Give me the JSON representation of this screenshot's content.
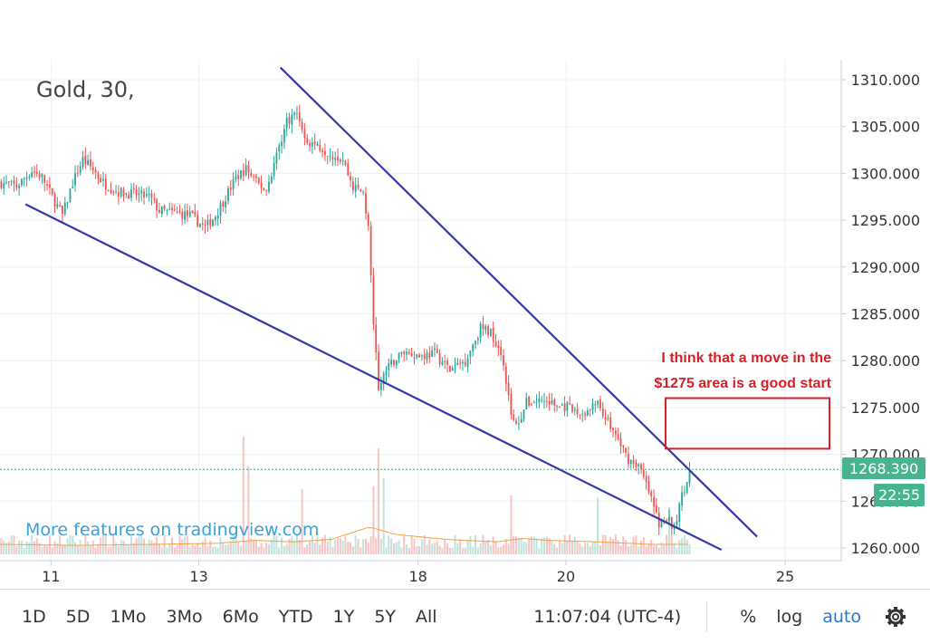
{
  "colors": {
    "up": "#26a69a",
    "down": "#ef5350",
    "trendline": "#3338a6",
    "volume_ma": "#f0a040",
    "price_line": "#47b48d",
    "annotation": "#d42026",
    "watermark": "#3aa0d8",
    "grid": "#eef0f3",
    "axis_text": "#333333"
  },
  "chart_data": {
    "type": "candlestick",
    "symbol_label": "Gold, 30,",
    "watermark": "More features on tradingview.com",
    "y_ticks": [
      "1310.000",
      "1305.000",
      "1300.000",
      "1295.000",
      "1290.000",
      "1285.000",
      "1280.000",
      "1275.000",
      "1270.000",
      "1265.000",
      "1260.000"
    ],
    "y_tick_values": [
      1310,
      1305,
      1300,
      1295,
      1290,
      1285,
      1280,
      1275,
      1270,
      1265,
      1260
    ],
    "ylim": [
      1259,
      1312
    ],
    "x_ticks": [
      {
        "label": "11",
        "bar": 20
      },
      {
        "label": "13",
        "bar": 78
      },
      {
        "label": "18",
        "bar": 164
      },
      {
        "label": "20",
        "bar": 222
      },
      {
        "label": "25",
        "bar": 308
      }
    ],
    "bar_count_visible": 330,
    "current_price": "1268.390",
    "countdown": "22:55",
    "last_price_value": 1268.39,
    "price_path": [
      [
        0,
        1299.0
      ],
      [
        6,
        1298.6
      ],
      [
        12,
        1300.3
      ],
      [
        16,
        1299.6
      ],
      [
        20,
        1297.5
      ],
      [
        24,
        1295.5
      ],
      [
        28,
        1299.0
      ],
      [
        32,
        1301.5
      ],
      [
        36,
        1300.4
      ],
      [
        40,
        1299.0
      ],
      [
        46,
        1298.0
      ],
      [
        52,
        1297.8
      ],
      [
        58,
        1297.5
      ],
      [
        62,
        1296.0
      ],
      [
        68,
        1295.8
      ],
      [
        74,
        1295.5
      ],
      [
        80,
        1294.2
      ],
      [
        84,
        1295.5
      ],
      [
        88,
        1297.5
      ],
      [
        92,
        1299.5
      ],
      [
        96,
        1300.5
      ],
      [
        100,
        1299.0
      ],
      [
        104,
        1298.2
      ],
      [
        108,
        1302.0
      ],
      [
        112,
        1305.6
      ],
      [
        116,
        1306.5
      ],
      [
        120,
        1303.5
      ],
      [
        124,
        1303.0
      ],
      [
        130,
        1302.0
      ],
      [
        134,
        1301.5
      ],
      [
        138,
        1298.5
      ],
      [
        142,
        1298.0
      ],
      [
        144,
        1294.0
      ],
      [
        146,
        1284.0
      ],
      [
        148,
        1276.8
      ],
      [
        150,
        1278.5
      ],
      [
        154,
        1280.0
      ],
      [
        158,
        1281.0
      ],
      [
        164,
        1280.5
      ],
      [
        170,
        1280.8
      ],
      [
        176,
        1279.0
      ],
      [
        182,
        1280.0
      ],
      [
        188,
        1283.5
      ],
      [
        192,
        1283.0
      ],
      [
        196,
        1281.0
      ],
      [
        198,
        1278.0
      ],
      [
        200,
        1274.0
      ],
      [
        202,
        1273.0
      ],
      [
        206,
        1275.5
      ],
      [
        212,
        1275.8
      ],
      [
        218,
        1275.2
      ],
      [
        222,
        1275.0
      ],
      [
        226,
        1274.3
      ],
      [
        230,
        1274.5
      ],
      [
        234,
        1275.5
      ],
      [
        238,
        1273.5
      ],
      [
        242,
        1271.5
      ],
      [
        246,
        1269.5
      ],
      [
        250,
        1268.8
      ],
      [
        254,
        1266.0
      ],
      [
        258,
        1262.6
      ],
      [
        262,
        1263.0
      ],
      [
        264,
        1261.8
      ],
      [
        266,
        1264.6
      ],
      [
        268,
        1266.5
      ],
      [
        270,
        1268.4
      ]
    ],
    "volume_ma_path": [
      [
        0,
        0.2
      ],
      [
        30,
        0.18
      ],
      [
        60,
        0.2
      ],
      [
        85,
        0.22
      ],
      [
        100,
        0.28
      ],
      [
        115,
        0.25
      ],
      [
        130,
        0.3
      ],
      [
        145,
        0.55
      ],
      [
        155,
        0.4
      ],
      [
        175,
        0.3
      ],
      [
        195,
        0.25
      ],
      [
        205,
        0.32
      ],
      [
        215,
        0.28
      ],
      [
        235,
        0.25
      ],
      [
        255,
        0.2
      ],
      [
        270,
        0.2
      ]
    ],
    "volume_spikes": [
      [
        95,
        1.0
      ],
      [
        97,
        0.75
      ],
      [
        118,
        0.55
      ],
      [
        146,
        0.58
      ],
      [
        148,
        0.9
      ],
      [
        150,
        0.65
      ],
      [
        200,
        0.5
      ],
      [
        234,
        0.48
      ],
      [
        262,
        0.4
      ]
    ],
    "trendlines": [
      {
        "from": [
          110,
          1311.3
        ],
        "to": [
          297,
          1261.2
        ]
      },
      {
        "from": [
          10,
          1296.7
        ],
        "to": [
          283,
          1259.8
        ]
      }
    ],
    "annotation": {
      "lines": [
        "I think that a move in the",
        "$1275 area is a good start"
      ],
      "box_price_range": [
        1270.6,
        1276.0
      ],
      "box_bar_range": [
        274,
        340
      ]
    }
  },
  "toolbar": {
    "ranges": [
      "1D",
      "5D",
      "1Mo",
      "3Mo",
      "6Mo",
      "YTD",
      "1Y",
      "5Y",
      "All"
    ],
    "time": "11:07:04 (UTC-4)",
    "percent": "%",
    "log": "log",
    "auto": "auto",
    "settings_icon": "gear-icon"
  }
}
